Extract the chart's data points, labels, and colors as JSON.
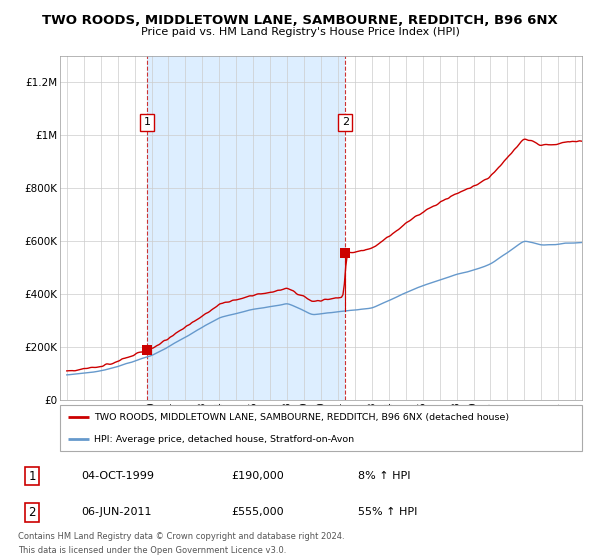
{
  "title": "TWO ROODS, MIDDLETOWN LANE, SAMBOURNE, REDDITCH, B96 6NX",
  "subtitle": "Price paid vs. HM Land Registry's House Price Index (HPI)",
  "red_label": "TWO ROODS, MIDDLETOWN LANE, SAMBOURNE, REDDITCH, B96 6NX (detached house)",
  "blue_label": "HPI: Average price, detached house, Stratford-on-Avon",
  "transactions": [
    {
      "num": 1,
      "date": "04-OCT-1999",
      "price": 190000,
      "hpi_pct": "8% ↑ HPI",
      "year": 1999.75
    },
    {
      "num": 2,
      "date": "06-JUN-2011",
      "price": 555000,
      "hpi_pct": "55% ↑ HPI",
      "year": 2011.43
    }
  ],
  "footer_line1": "Contains HM Land Registry data © Crown copyright and database right 2024.",
  "footer_line2": "This data is licensed under the Open Government Licence v3.0.",
  "ylim": [
    0,
    1300000
  ],
  "yticks": [
    0,
    200000,
    400000,
    600000,
    800000,
    1000000,
    1200000
  ],
  "ytick_labels": [
    "£0",
    "£200K",
    "£400K",
    "£600K",
    "£800K",
    "£1M",
    "£1.2M"
  ],
  "red_color": "#cc0000",
  "blue_color": "#6699cc",
  "shade_color": "#ddeeff",
  "dashed_color": "#cc3333",
  "background_color": "#ffffff",
  "grid_color": "#cccccc",
  "sale1_year": 1999.75,
  "sale1_price": 190000,
  "sale2_year": 2011.43,
  "sale2_price": 555000
}
